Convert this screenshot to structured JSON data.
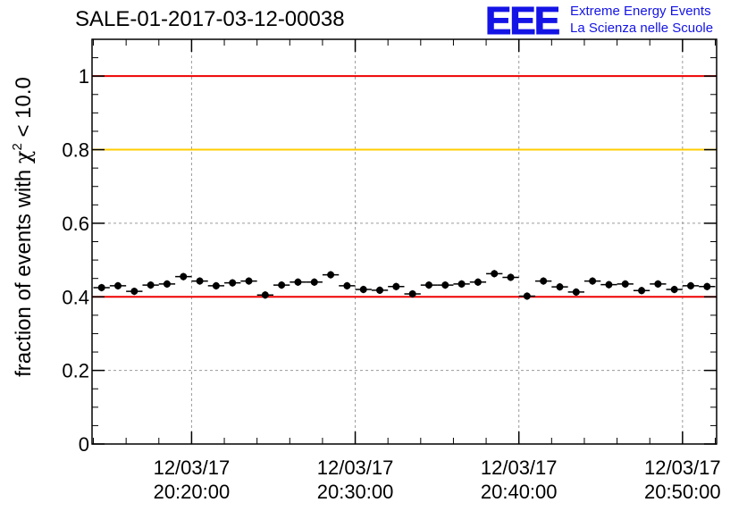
{
  "header": {
    "title": "SALE-01-2017-03-12-00038",
    "logo_letters": "EEE",
    "logo_line1": "Extreme Energy Events",
    "logo_line2": "La Scienza nelle Scuole"
  },
  "colors": {
    "marker": "#000000",
    "line_red": "#ee0000",
    "line_yellow": "#ffcc00",
    "logo_blue": "#1414e6",
    "grid": "#9a9a9a"
  },
  "chart_data": {
    "type": "scatter",
    "title": "SALE-01-2017-03-12-00038",
    "xlabel": "",
    "ylabel": "fraction of events with χ² < 10.0",
    "ylabel_parts": {
      "pre": "fraction of events with ",
      "symbol": "χ",
      "sup": "2",
      "post": " < 10.0"
    },
    "ylim": [
      0,
      1.1
    ],
    "xlim": [
      "2017-03-12 20:13:55",
      "2017-03-12 20:52:05"
    ],
    "grid": true,
    "yticks": [
      0,
      0.2,
      0.4,
      0.6,
      0.8,
      1
    ],
    "ytick_labels": [
      "0",
      "0.2",
      "0.4",
      "0.6",
      "0.8",
      "1"
    ],
    "xticks": [
      "2017-03-12 20:20:00",
      "2017-03-12 20:30:00",
      "2017-03-12 20:40:00",
      "2017-03-12 20:50:00"
    ],
    "xtick_labels": [
      [
        "12/03/17",
        "20:20:00"
      ],
      [
        "12/03/17",
        "20:30:00"
      ],
      [
        "12/03/17",
        "20:40:00"
      ],
      [
        "12/03/17",
        "20:50:00"
      ]
    ],
    "reference_lines": [
      {
        "y": 1.0,
        "color": "#ee0000"
      },
      {
        "y": 0.8,
        "color": "#ffcc00"
      },
      {
        "y": 0.4,
        "color": "#ee0000"
      }
    ],
    "series": [
      {
        "x": [
          "20:14:30",
          "20:15:30",
          "20:16:30",
          "20:17:30",
          "20:18:30",
          "20:19:30",
          "20:20:30",
          "20:21:30",
          "20:22:30",
          "20:23:30",
          "20:24:30",
          "20:25:30",
          "20:26:30",
          "20:27:30",
          "20:28:30",
          "20:29:30",
          "20:30:30",
          "20:31:30",
          "20:32:30",
          "20:33:30",
          "20:34:30",
          "20:35:30",
          "20:36:30",
          "20:37:30",
          "20:38:30",
          "20:39:30",
          "20:40:30",
          "20:41:30",
          "20:42:30",
          "20:43:30",
          "20:44:30",
          "20:45:30",
          "20:46:30",
          "20:47:30",
          "20:48:30",
          "20:49:30",
          "20:50:30",
          "20:51:30"
        ],
        "y": [
          0.425,
          0.43,
          0.415,
          0.432,
          0.435,
          0.455,
          0.443,
          0.43,
          0.438,
          0.443,
          0.405,
          0.432,
          0.44,
          0.44,
          0.46,
          0.43,
          0.42,
          0.418,
          0.428,
          0.408,
          0.432,
          0.432,
          0.435,
          0.44,
          0.463,
          0.453,
          0.402,
          0.443,
          0.427,
          0.413,
          0.443,
          0.433,
          0.435,
          0.417,
          0.435,
          0.42,
          0.43,
          0.428
        ],
        "y_err": [
          0.01,
          0.01,
          0.01,
          0.01,
          0.01,
          0.01,
          0.01,
          0.01,
          0.01,
          0.01,
          0.01,
          0.01,
          0.01,
          0.01,
          0.01,
          0.01,
          0.01,
          0.01,
          0.01,
          0.01,
          0.01,
          0.01,
          0.01,
          0.01,
          0.01,
          0.01,
          0.01,
          0.01,
          0.01,
          0.01,
          0.01,
          0.01,
          0.01,
          0.01,
          0.01,
          0.01,
          0.01,
          0.01
        ]
      }
    ]
  }
}
